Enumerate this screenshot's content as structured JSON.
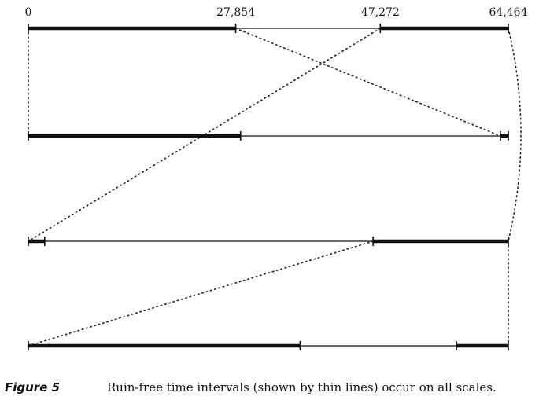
{
  "figure": {
    "tick_labels": [
      "0",
      "27,854",
      "47,272",
      "64,464"
    ],
    "caption": {
      "number": "Figure 5",
      "text": "Ruin-free time intervals (shown by thin lines) occur on all scales."
    }
  },
  "chart_data": {
    "type": "diagram",
    "domain": [
      0,
      64464
    ],
    "rows": [
      {
        "thick": [
          [
            0,
            27854
          ],
          [
            47272,
            64464
          ]
        ],
        "thin": [
          [
            27854,
            47272
          ]
        ]
      },
      {
        "thick": [
          [
            0,
            28500
          ],
          [
            63400,
            64464
          ]
        ],
        "thin": [
          [
            28500,
            63400
          ]
        ]
      },
      {
        "thick": [
          [
            0,
            2200
          ],
          [
            46300,
            64464
          ]
        ],
        "thin": [
          [
            2200,
            46300
          ]
        ]
      },
      {
        "thick": [
          [
            0,
            36500
          ],
          [
            57500,
            64464
          ]
        ],
        "thin": [
          [
            36500,
            57500
          ]
        ]
      }
    ],
    "connectors": [
      {
        "from_row": 0,
        "from_x": 0,
        "to_row": 1,
        "to_x": 0
      },
      {
        "from_row": 0,
        "from_x": 27854,
        "to_row": 1,
        "to_x": 63400
      },
      {
        "from_row": 0,
        "from_x": 47272,
        "to_row": 2,
        "to_x": 0
      },
      {
        "from_row": 0,
        "from_x": 64464,
        "to_row": 2,
        "to_x": 64464
      },
      {
        "from_row": 2,
        "from_x": 46300,
        "to_row": 3,
        "to_x": 0
      },
      {
        "from_row": 2,
        "from_x": 64464,
        "to_row": 3,
        "to_x": 64464
      }
    ]
  }
}
